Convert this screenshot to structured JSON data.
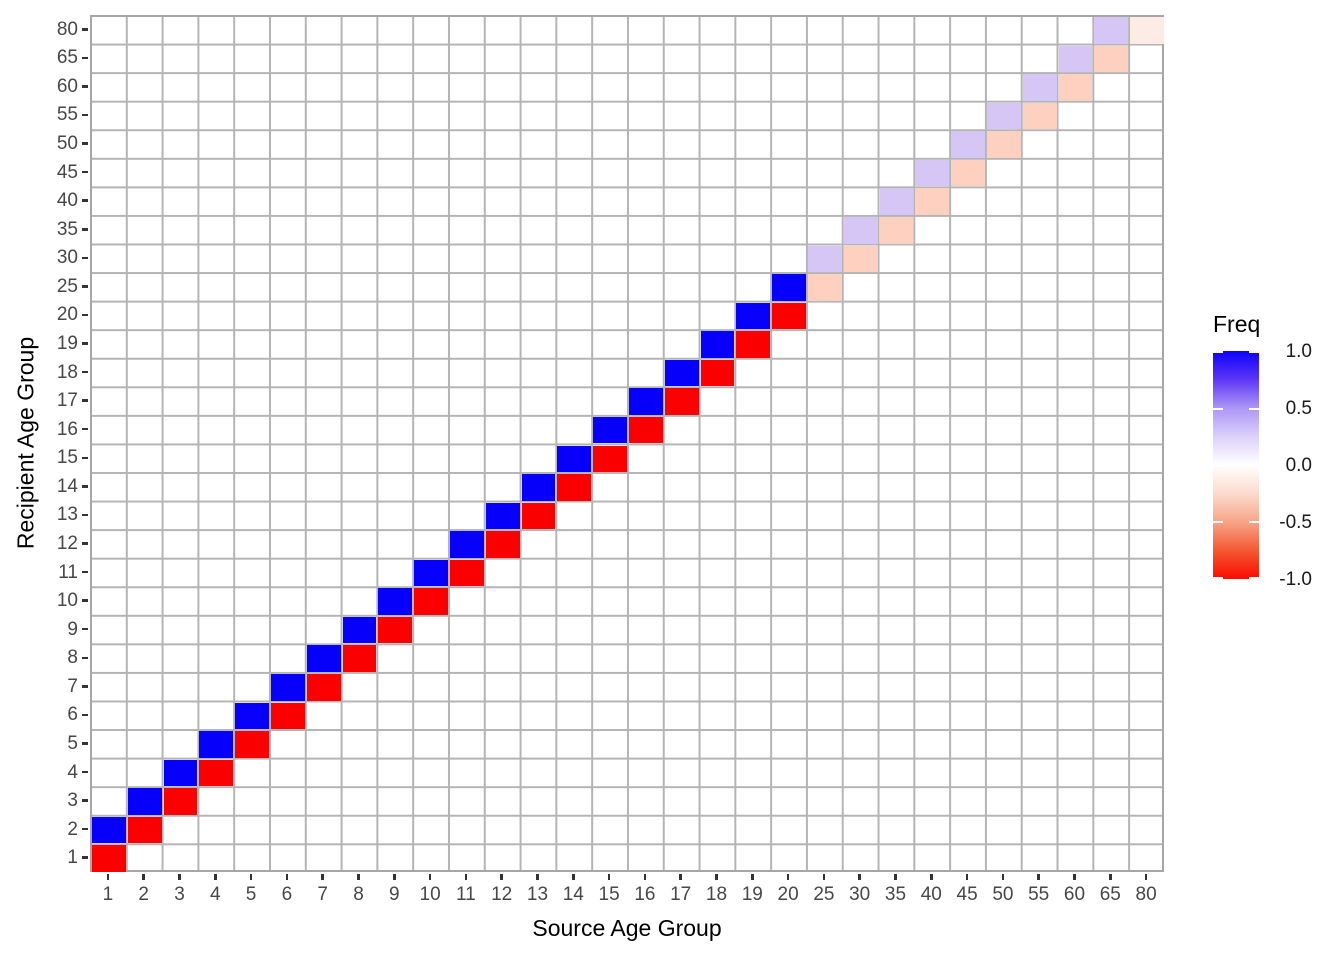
{
  "chart_data": {
    "type": "heatmap",
    "title": "",
    "xlabel": "Source Age Group",
    "ylabel": "Recipient Age Group",
    "age_groups": [
      "1",
      "2",
      "3",
      "4",
      "5",
      "6",
      "7",
      "8",
      "9",
      "10",
      "11",
      "12",
      "13",
      "14",
      "15",
      "16",
      "17",
      "18",
      "19",
      "20",
      "25",
      "30",
      "35",
      "40",
      "45",
      "50",
      "55",
      "60",
      "65",
      "80"
    ],
    "x_axis_label": "Source Age Group",
    "y_axis_label": "Recipient Age Group",
    "value_range": [
      -1.0,
      1.0
    ],
    "grid": true,
    "palette": {
      "ps": "#0600FB",
      "ns": "#FB0000",
      "pw": "#D6C6F6",
      "nw": "#FDD0BF",
      "nf": "#FDECE6"
    },
    "panel_colors": {
      "grid_line": "#B4B4B4",
      "panel_border": "#A6A6A6",
      "tick_mark": "#333333",
      "axis_text": "#474747"
    },
    "cells": [
      [
        "1",
        "1",
        -1,
        "ns"
      ],
      [
        "1",
        "2",
        1,
        "ps"
      ],
      [
        "2",
        "2",
        -1,
        "ns"
      ],
      [
        "2",
        "3",
        1,
        "ps"
      ],
      [
        "3",
        "3",
        -1,
        "ns"
      ],
      [
        "3",
        "4",
        1,
        "ps"
      ],
      [
        "4",
        "4",
        -1,
        "ns"
      ],
      [
        "4",
        "5",
        1,
        "ps"
      ],
      [
        "5",
        "5",
        -1,
        "ns"
      ],
      [
        "5",
        "6",
        1,
        "ps"
      ],
      [
        "6",
        "6",
        -1,
        "ns"
      ],
      [
        "6",
        "7",
        1,
        "ps"
      ],
      [
        "7",
        "7",
        -1,
        "ns"
      ],
      [
        "7",
        "8",
        1,
        "ps"
      ],
      [
        "8",
        "8",
        -1,
        "ns"
      ],
      [
        "8",
        "9",
        1,
        "ps"
      ],
      [
        "9",
        "9",
        -1,
        "ns"
      ],
      [
        "9",
        "10",
        1,
        "ps"
      ],
      [
        "10",
        "10",
        -1,
        "ns"
      ],
      [
        "10",
        "11",
        1,
        "ps"
      ],
      [
        "11",
        "11",
        -1,
        "ns"
      ],
      [
        "11",
        "12",
        1,
        "ps"
      ],
      [
        "12",
        "12",
        -1,
        "ns"
      ],
      [
        "12",
        "13",
        1,
        "ps"
      ],
      [
        "13",
        "13",
        -1,
        "ns"
      ],
      [
        "13",
        "14",
        1,
        "ps"
      ],
      [
        "14",
        "14",
        -1,
        "ns"
      ],
      [
        "14",
        "15",
        1,
        "ps"
      ],
      [
        "15",
        "15",
        -1,
        "ns"
      ],
      [
        "15",
        "16",
        1,
        "ps"
      ],
      [
        "16",
        "16",
        -1,
        "ns"
      ],
      [
        "16",
        "17",
        1,
        "ps"
      ],
      [
        "17",
        "17",
        -1,
        "ns"
      ],
      [
        "17",
        "18",
        1,
        "ps"
      ],
      [
        "18",
        "18",
        -1,
        "ns"
      ],
      [
        "18",
        "19",
        1,
        "ps"
      ],
      [
        "19",
        "19",
        -1,
        "ns"
      ],
      [
        "19",
        "20",
        1,
        "ps"
      ],
      [
        "20",
        "20",
        -1,
        "ns"
      ],
      [
        "20",
        "25",
        1,
        "ps"
      ],
      [
        "25",
        "25",
        -0.3,
        "nw"
      ],
      [
        "25",
        "30",
        0.3,
        "pw"
      ],
      [
        "30",
        "30",
        -0.3,
        "nw"
      ],
      [
        "30",
        "35",
        0.3,
        "pw"
      ],
      [
        "35",
        "35",
        -0.3,
        "nw"
      ],
      [
        "35",
        "40",
        0.3,
        "pw"
      ],
      [
        "40",
        "40",
        -0.3,
        "nw"
      ],
      [
        "40",
        "45",
        0.3,
        "pw"
      ],
      [
        "45",
        "45",
        -0.3,
        "nw"
      ],
      [
        "45",
        "50",
        0.3,
        "pw"
      ],
      [
        "50",
        "50",
        -0.3,
        "nw"
      ],
      [
        "50",
        "55",
        0.3,
        "pw"
      ],
      [
        "55",
        "55",
        -0.3,
        "nw"
      ],
      [
        "55",
        "60",
        0.3,
        "pw"
      ],
      [
        "60",
        "60",
        -0.3,
        "nw"
      ],
      [
        "60",
        "65",
        0.3,
        "pw"
      ],
      [
        "65",
        "65",
        -0.3,
        "nw"
      ],
      [
        "65",
        "80",
        0.3,
        "pw"
      ],
      [
        "80",
        "80",
        -0.1,
        "nf"
      ]
    ],
    "legend": {
      "title": "Freq",
      "position": "right",
      "breaks": [
        {
          "label": "1.0",
          "value": 1.0
        },
        {
          "label": "0.5",
          "value": 0.5
        },
        {
          "label": "0.0",
          "value": 0.0
        },
        {
          "label": "-0.5",
          "value": -0.5
        },
        {
          "label": "-1.0",
          "value": -1.0
        }
      ],
      "gradient_stops": [
        [
          "0%",
          "#0D02FA"
        ],
        [
          "12%",
          "#5A33F6"
        ],
        [
          "25%",
          "#AC97F5"
        ],
        [
          "38%",
          "#DDD3F9"
        ],
        [
          "50%",
          "#FFFFFF"
        ],
        [
          "63%",
          "#FBDACB"
        ],
        [
          "75%",
          "#F7A487"
        ],
        [
          "88%",
          "#F4552F"
        ],
        [
          "100%",
          "#FA0B00"
        ]
      ]
    }
  }
}
